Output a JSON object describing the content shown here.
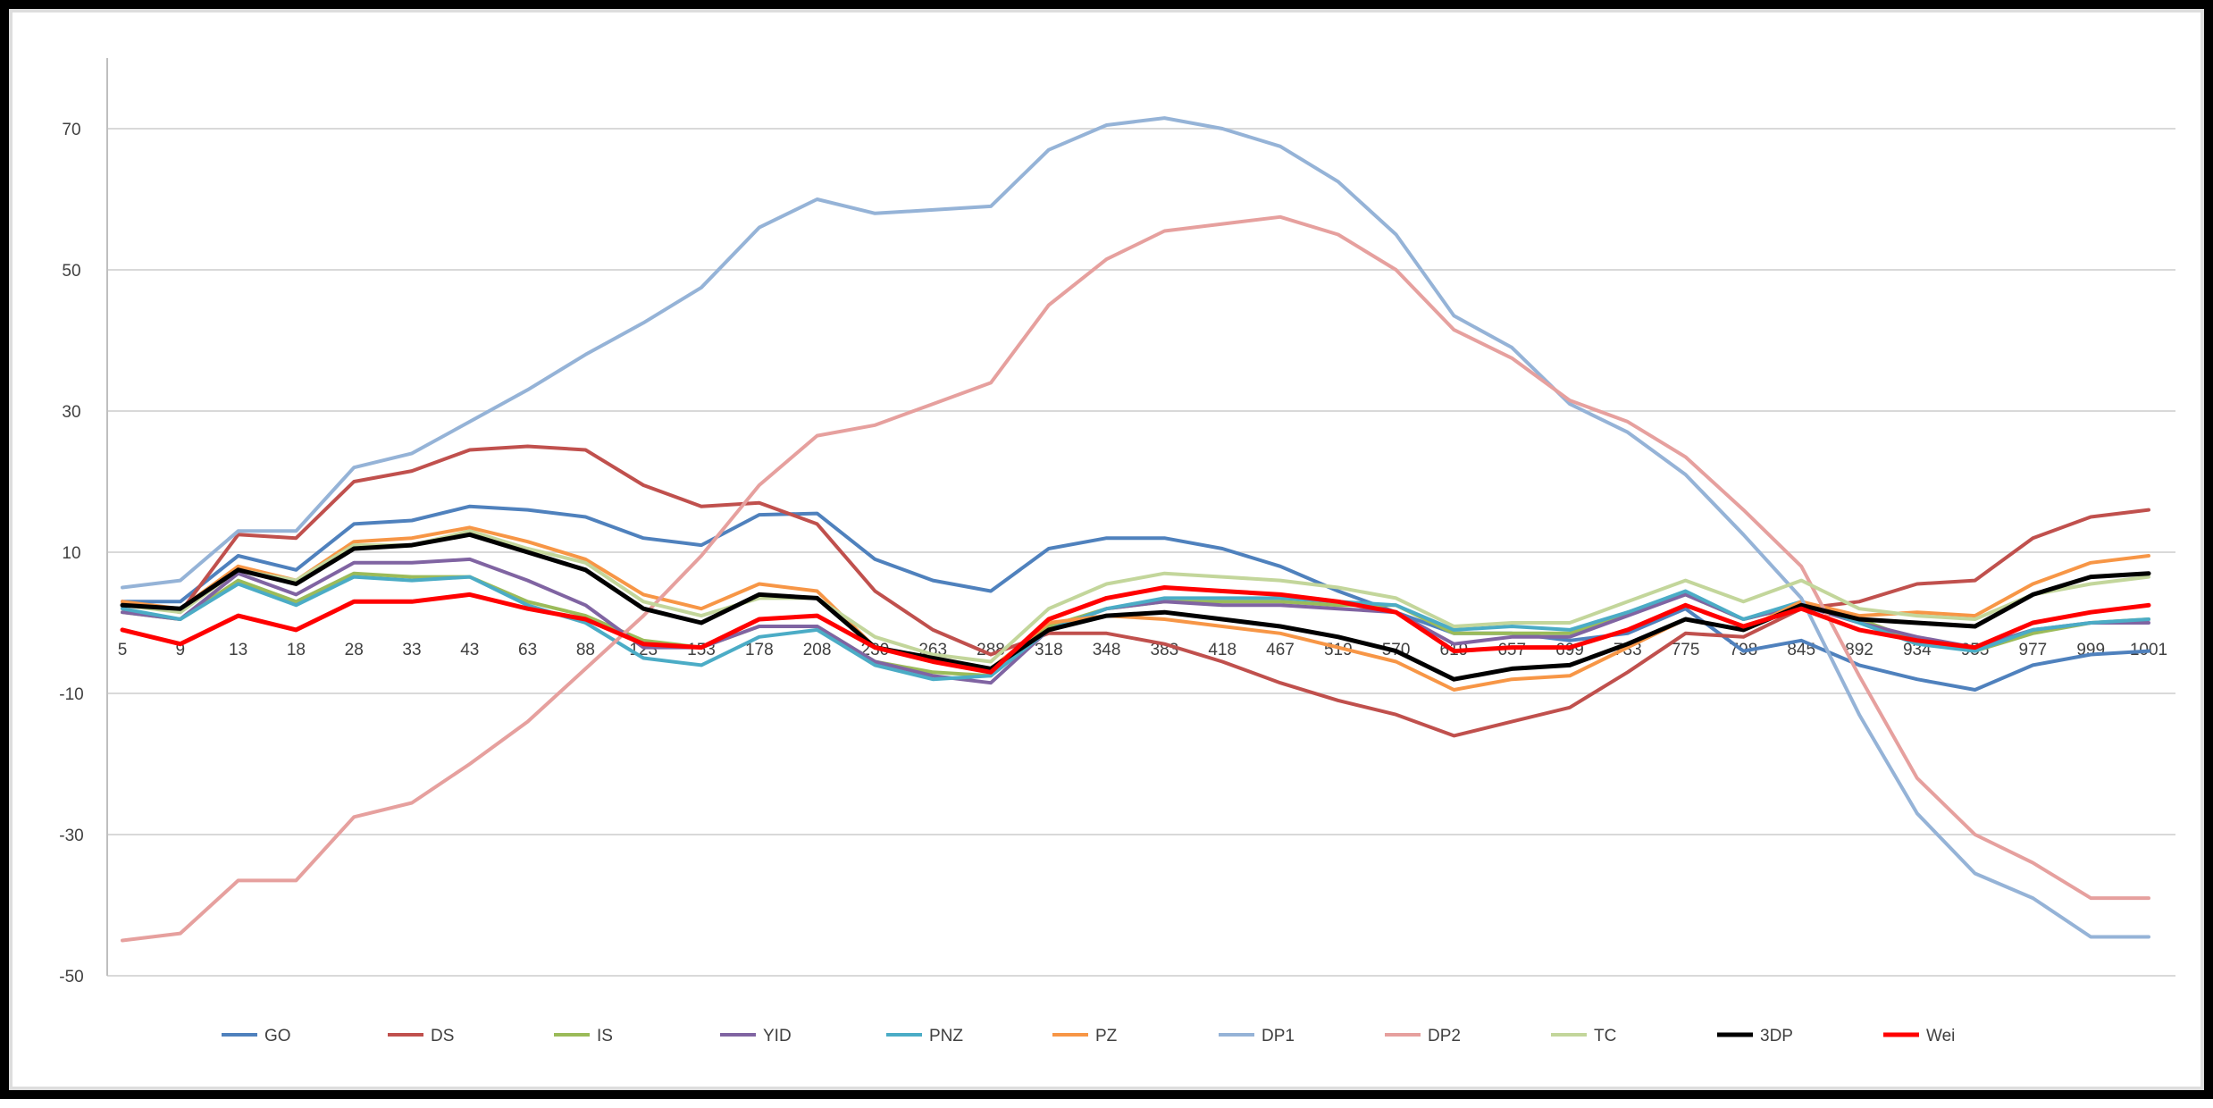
{
  "chart_data": {
    "type": "line",
    "title": "",
    "xlabel": "",
    "ylabel": "",
    "ylim": [
      -50,
      80
    ],
    "yticks": [
      -50,
      -30,
      -10,
      10,
      30,
      50,
      70
    ],
    "grid": true,
    "legend_position": "bottom",
    "categories": [
      "5",
      "9",
      "13",
      "18",
      "28",
      "33",
      "43",
      "63",
      "88",
      "123",
      "153",
      "178",
      "208",
      "230",
      "263",
      "288",
      "318",
      "348",
      "383",
      "418",
      "467",
      "519",
      "570",
      "619",
      "657",
      "699",
      "733",
      "775",
      "798",
      "845",
      "892",
      "934",
      "955",
      "977",
      "999",
      "1001"
    ],
    "series": [
      {
        "name": "GO",
        "color": "#4F81BD",
        "values": [
          3,
          3,
          9.5,
          7.5,
          14,
          14.5,
          16.5,
          16,
          15,
          12,
          11,
          15.3,
          15.5,
          9,
          6,
          4.5,
          10.5,
          12,
          12,
          10.5,
          8,
          4.5,
          1.5,
          -1.5,
          -1.5,
          -2.5,
          -1.5,
          2,
          -4,
          -2.5,
          -6,
          -8,
          -9.5,
          -6,
          -4.5,
          -4
        ]
      },
      {
        "name": "DS",
        "color": "#C0504D",
        "values": [
          3,
          1.5,
          12.5,
          12,
          20,
          21.5,
          24.5,
          25,
          24.5,
          19.5,
          16.5,
          17,
          14,
          4.5,
          -1,
          -4.5,
          -1.5,
          -1.5,
          -3,
          -5.5,
          -8.5,
          -11,
          -13,
          -16,
          -14,
          -12,
          -7,
          -1.5,
          -2,
          2,
          3,
          5.5,
          6,
          12,
          15,
          16
        ]
      },
      {
        "name": "IS",
        "color": "#9BBB59",
        "values": [
          1.5,
          0.5,
          6,
          3,
          7,
          6.5,
          6.5,
          3,
          1,
          -2.5,
          -3.5,
          -0.5,
          -0.5,
          -5.5,
          -7,
          -7.5,
          -0.5,
          2,
          3,
          3,
          3,
          2.5,
          2.5,
          -1.5,
          -1.5,
          -1.5,
          1.5,
          4,
          0.5,
          2.5,
          0.5,
          -2.5,
          -4,
          -1.5,
          0,
          0.5
        ]
      },
      {
        "name": "YID",
        "color": "#8064A2",
        "values": [
          1.5,
          0.5,
          7,
          4,
          8.5,
          8.5,
          9,
          6,
          2.5,
          -3.5,
          -3.5,
          -0.5,
          -0.5,
          -5.5,
          -7.5,
          -8.5,
          -1,
          2,
          3,
          2.5,
          2.5,
          2,
          1.5,
          -3,
          -2,
          -2,
          1,
          4,
          0.5,
          2.5,
          0,
          -2,
          -3.5,
          -1,
          0,
          0
        ]
      },
      {
        "name": "PNZ",
        "color": "#4BACC6",
        "values": [
          2,
          0.5,
          5.5,
          2.5,
          6.5,
          6,
          6.5,
          2.5,
          0,
          -5,
          -6,
          -2,
          -1,
          -6,
          -8,
          -7.5,
          -1,
          2,
          3.5,
          3.5,
          3.5,
          3,
          2.5,
          -1,
          -0.5,
          -1,
          1.5,
          4.5,
          0.5,
          3,
          0,
          -3,
          -4,
          -1,
          0,
          0.5
        ]
      },
      {
        "name": "PZ",
        "color": "#F79646",
        "values": [
          3,
          2,
          8,
          6,
          11.5,
          12,
          13.5,
          11.5,
          9,
          4,
          2,
          5.5,
          4.5,
          -3.5,
          -5,
          -6.5,
          0,
          1,
          0.5,
          -0.5,
          -1.5,
          -3.5,
          -5.5,
          -9.5,
          -8,
          -7.5,
          -3.5,
          0.5,
          -1,
          3,
          1,
          1.5,
          1,
          5.5,
          8.5,
          9.5
        ]
      },
      {
        "name": "DP1",
        "color": "#95B3D7",
        "values": [
          5,
          6,
          13,
          13,
          22,
          24,
          28.5,
          33,
          38,
          42.5,
          47.5,
          56,
          60,
          58,
          58.5,
          59,
          67,
          70.5,
          71.5,
          70,
          67.5,
          62.5,
          55,
          43.5,
          39,
          31,
          27,
          21,
          12.5,
          3.5,
          -13,
          -27,
          -35.5,
          -39,
          -44.5,
          -44.5
        ]
      },
      {
        "name": "DP2",
        "color": "#E6A09E",
        "values": [
          -45,
          -44,
          -36.5,
          -36.5,
          -27.5,
          -25.5,
          -20,
          -14,
          -6.5,
          1,
          9.5,
          19.5,
          26.5,
          28,
          31,
          34,
          45,
          51.5,
          55.5,
          56.5,
          57.5,
          55,
          50,
          41.5,
          37.5,
          31.5,
          28.5,
          23.5,
          16,
          8,
          -7.5,
          -22,
          -30,
          -34,
          -39,
          -39
        ]
      },
      {
        "name": "TC",
        "color": "#C3D69B",
        "values": [
          2.5,
          1.5,
          7.5,
          6,
          11,
          11,
          13,
          10.5,
          8.5,
          3,
          1,
          3.5,
          3.5,
          -2,
          -4.5,
          -5.5,
          2,
          5.5,
          7,
          6.5,
          6,
          5,
          3.5,
          -0.5,
          0,
          0,
          3,
          6,
          3,
          6,
          2,
          1,
          0.5,
          4,
          5.5,
          6.5
        ]
      },
      {
        "name": "3DP",
        "color": "#000000",
        "values": [
          2.5,
          2,
          7.5,
          5.5,
          10.5,
          11,
          12.5,
          10,
          7.5,
          2,
          0,
          4,
          3.5,
          -3.5,
          -5,
          -6.5,
          -1,
          1,
          1.5,
          0.5,
          -0.5,
          -2,
          -4,
          -8,
          -6.5,
          -6,
          -3,
          0.5,
          -1,
          2.5,
          0.5,
          0,
          -0.5,
          4,
          6.5,
          7
        ]
      },
      {
        "name": "Wei",
        "color": "#FF0000",
        "values": [
          -1,
          -3,
          1,
          -1,
          3,
          3,
          4,
          2,
          0.5,
          -3,
          -3.5,
          0.5,
          1,
          -3.5,
          -5.5,
          -7,
          0.5,
          3.5,
          5,
          4.5,
          4,
          3,
          1.5,
          -4,
          -3.5,
          -3.5,
          -1,
          2.5,
          -0.5,
          2,
          -1,
          -2.5,
          -3.5,
          0,
          1.5,
          2.5
        ]
      }
    ]
  }
}
